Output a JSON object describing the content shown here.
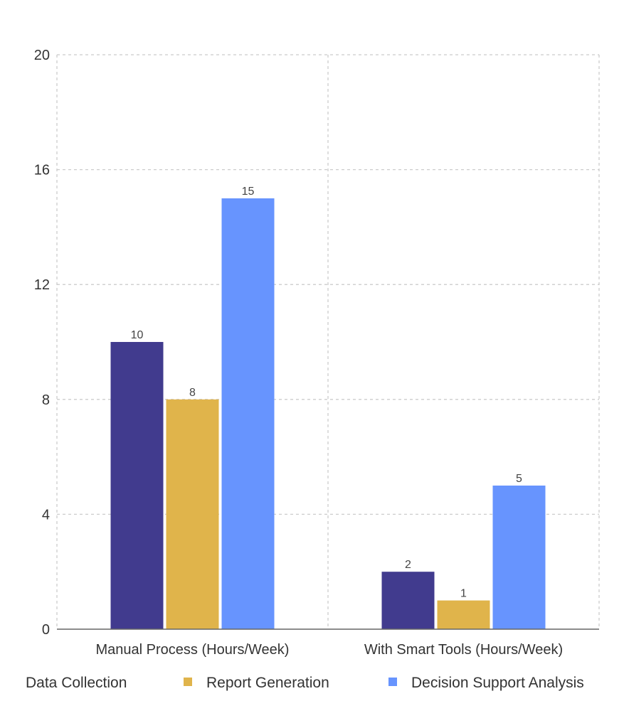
{
  "chart_data": {
    "type": "bar",
    "title": "",
    "xlabel": "",
    "ylabel": "",
    "categories": [
      "Manual Process (Hours/Week)",
      "With Smart Tools (Hours/Week)"
    ],
    "series": [
      {
        "name": "Data Collection",
        "values": [
          10,
          2
        ],
        "color": "#413b8e"
      },
      {
        "name": "Report Generation",
        "values": [
          8,
          1
        ],
        "color": "#e0b44b"
      },
      {
        "name": "Decision Support Analysis",
        "values": [
          15,
          5
        ],
        "color": "#6794fe"
      }
    ],
    "ylim": [
      0,
      20
    ],
    "yticks": [
      0,
      4,
      8,
      12,
      16,
      20
    ],
    "grid": true,
    "legend_position": "bottom",
    "data_labels": true
  }
}
